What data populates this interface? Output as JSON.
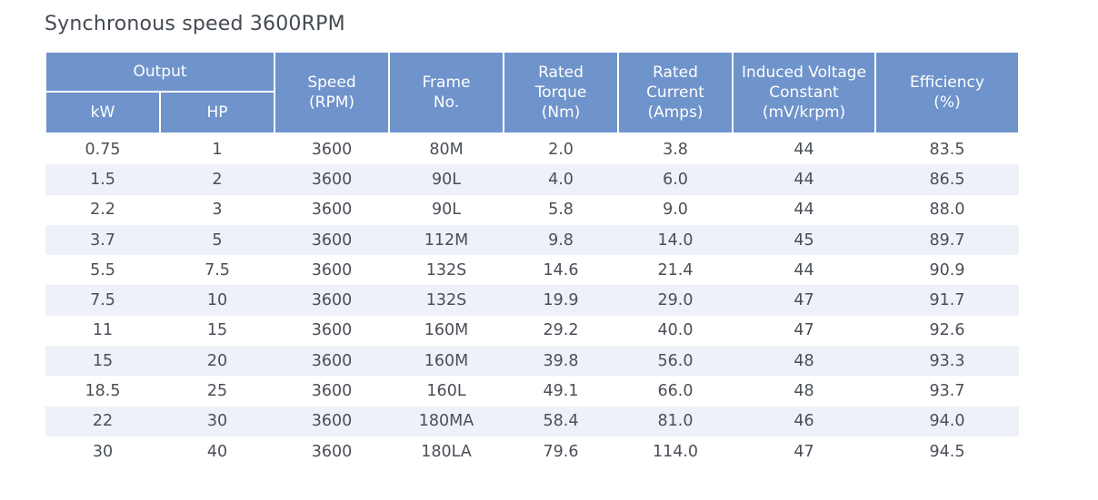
{
  "title": "Synchronous speed 3600RPM",
  "header": {
    "output": "Output",
    "kw": "kW",
    "hp": "HP",
    "speed": "Speed\n(RPM)",
    "frame": "Frame\nNo.",
    "torque": "Rated\nTorque\n(Nm)",
    "current": "Rated\nCurrent\n(Amps)",
    "induced": "Induced Voltage\nConstant\n(mV/krpm)",
    "efficiency": "Efficiency\n(%)"
  },
  "rows": [
    {
      "kw": "0.75",
      "hp": "1",
      "speed": "3600",
      "frame": "80M",
      "torque": "2.0",
      "current": "3.8",
      "induced": "44",
      "efficiency": "83.5"
    },
    {
      "kw": "1.5",
      "hp": "2",
      "speed": "3600",
      "frame": "90L",
      "torque": "4.0",
      "current": "6.0",
      "induced": "44",
      "efficiency": "86.5"
    },
    {
      "kw": "2.2",
      "hp": "3",
      "speed": "3600",
      "frame": "90L",
      "torque": "5.8",
      "current": "9.0",
      "induced": "44",
      "efficiency": "88.0"
    },
    {
      "kw": "3.7",
      "hp": "5",
      "speed": "3600",
      "frame": "112M",
      "torque": "9.8",
      "current": "14.0",
      "induced": "45",
      "efficiency": "89.7"
    },
    {
      "kw": "5.5",
      "hp": "7.5",
      "speed": "3600",
      "frame": "132S",
      "torque": "14.6",
      "current": "21.4",
      "induced": "44",
      "efficiency": "90.9"
    },
    {
      "kw": "7.5",
      "hp": "10",
      "speed": "3600",
      "frame": "132S",
      "torque": "19.9",
      "current": "29.0",
      "induced": "47",
      "efficiency": "91.7"
    },
    {
      "kw": "11",
      "hp": "15",
      "speed": "3600",
      "frame": "160M",
      "torque": "29.2",
      "current": "40.0",
      "induced": "47",
      "efficiency": "92.6"
    },
    {
      "kw": "15",
      "hp": "20",
      "speed": "3600",
      "frame": "160M",
      "torque": "39.8",
      "current": "56.0",
      "induced": "48",
      "efficiency": "93.3"
    },
    {
      "kw": "18.5",
      "hp": "25",
      "speed": "3600",
      "frame": "160L",
      "torque": "49.1",
      "current": "66.0",
      "induced": "48",
      "efficiency": "93.7"
    },
    {
      "kw": "22",
      "hp": "30",
      "speed": "3600",
      "frame": "180MA",
      "torque": "58.4",
      "current": "81.0",
      "induced": "46",
      "efficiency": "94.0"
    },
    {
      "kw": "30",
      "hp": "40",
      "speed": "3600",
      "frame": "180LA",
      "torque": "79.6",
      "current": "114.0",
      "induced": "47",
      "efficiency": "94.5"
    }
  ],
  "colors": {
    "header_bg": "#6f93cb",
    "header_text": "#ffffff",
    "stripe": "#eef1f7",
    "body_text": "#4a4f57"
  }
}
